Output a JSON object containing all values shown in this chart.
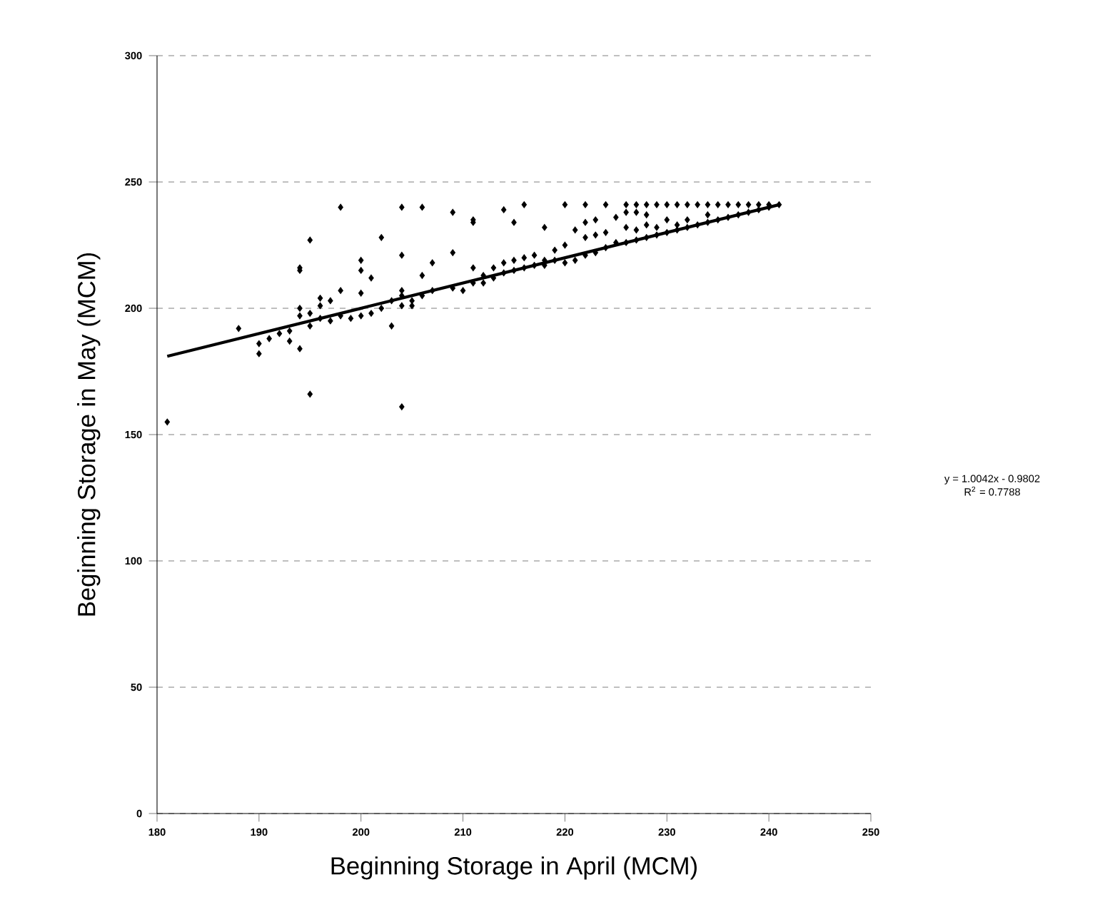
{
  "chart_data": {
    "type": "scatter",
    "xlabel": "Beginning Storage in April (MCM)",
    "ylabel": "Beginning Storage in May (MCM)",
    "xlim": [
      180,
      250
    ],
    "xticks": [
      180,
      190,
      200,
      210,
      220,
      230,
      240,
      250
    ],
    "ylim": [
      0,
      300
    ],
    "yticks": [
      0,
      50,
      100,
      150,
      200,
      250,
      300
    ],
    "grid": "y",
    "marker": "diamond",
    "annotations": [
      "y = 1.0042x - 0.9802",
      "R$^{2}$ = 0.7788"
    ],
    "series": [
      {
        "color": "#000000",
        "x": [
          181,
          188,
          190,
          190,
          191,
          192,
          193,
          193,
          194,
          194,
          194,
          194,
          194,
          195,
          195,
          195,
          195,
          196,
          196,
          196,
          197,
          197,
          198,
          198,
          198,
          199,
          200,
          200,
          200,
          200,
          201,
          201,
          202,
          202,
          203,
          203,
          204,
          204,
          204,
          204,
          204,
          204,
          205,
          205,
          206,
          206,
          206,
          207,
          207,
          209,
          209,
          209,
          210,
          211,
          211,
          211,
          211,
          212,
          212,
          213,
          213,
          214,
          214,
          214,
          215,
          215,
          215,
          216,
          216,
          216,
          217,
          217,
          218,
          218,
          218,
          219,
          219,
          220,
          220,
          220,
          221,
          221,
          222,
          222,
          222,
          222,
          223,
          223,
          223,
          224,
          224,
          224,
          225,
          225,
          226,
          226,
          226,
          226,
          227,
          227,
          227,
          227,
          228,
          228,
          228,
          228,
          229,
          229,
          229,
          230,
          230,
          230,
          231,
          231,
          231,
          232,
          232,
          232,
          233,
          233,
          234,
          234,
          234,
          235,
          235,
          236,
          236,
          237,
          237,
          238,
          238,
          239,
          239,
          240,
          240,
          241
        ],
        "values": [
          155,
          192,
          182,
          186,
          188,
          190,
          187,
          191,
          184,
          216,
          215,
          197,
          200,
          166,
          227,
          193,
          198,
          196,
          204,
          201,
          195,
          203,
          240,
          197,
          207,
          196,
          219,
          215,
          197,
          206,
          198,
          212,
          228,
          200,
          193,
          203,
          240,
          221,
          161,
          207,
          205,
          201,
          203,
          201,
          240,
          213,
          205,
          218,
          207,
          238,
          222,
          208,
          207,
          235,
          234,
          216,
          210,
          213,
          210,
          216,
          212,
          239,
          214,
          218,
          234,
          219,
          215,
          241,
          220,
          216,
          221,
          217,
          232,
          219,
          217,
          223,
          219,
          241,
          225,
          218,
          231,
          219,
          241,
          234,
          228,
          221,
          235,
          229,
          222,
          241,
          230,
          224,
          236,
          226,
          241,
          238,
          232,
          226,
          241,
          238,
          231,
          227,
          241,
          237,
          233,
          228,
          241,
          232,
          229,
          241,
          235,
          230,
          241,
          233,
          231,
          241,
          235,
          232,
          241,
          233,
          241,
          237,
          234,
          241,
          235,
          241,
          236,
          241,
          237,
          241,
          238,
          241,
          239,
          241,
          240,
          241
        ]
      },
      {
        "type": "line",
        "color": "#000000",
        "marker": "none",
        "line_style": "solid",
        "x": [
          181,
          241
        ],
        "values": [
          181,
          241
        ]
      }
    ]
  }
}
